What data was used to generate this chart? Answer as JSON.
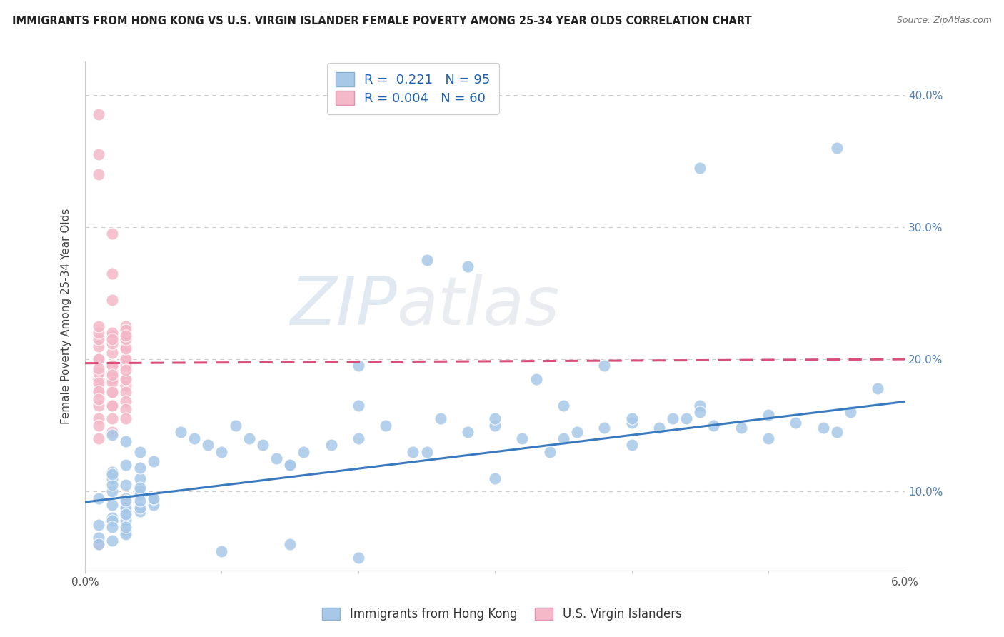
{
  "title": "IMMIGRANTS FROM HONG KONG VS U.S. VIRGIN ISLANDER FEMALE POVERTY AMONG 25-34 YEAR OLDS CORRELATION CHART",
  "source": "Source: ZipAtlas.com",
  "ylabel": "Female Poverty Among 25-34 Year Olds",
  "y_ticks": [
    0.1,
    0.2,
    0.3,
    0.4
  ],
  "y_tick_labels": [
    "10.0%",
    "20.0%",
    "30.0%",
    "40.0%"
  ],
  "x_min": 0.0,
  "x_max": 0.06,
  "y_min": 0.04,
  "y_max": 0.425,
  "blue_R": 0.221,
  "blue_N": 95,
  "pink_R": 0.004,
  "pink_N": 60,
  "blue_color": "#a8c8e8",
  "pink_color": "#f4b8c8",
  "blue_line_color": "#3a7abf",
  "pink_line_color": "#d94f7a",
  "watermark_zip": "ZIP",
  "watermark_atlas": "atlas",
  "legend_label_blue": "Immigrants from Hong Kong",
  "legend_label_pink": "U.S. Virgin Islanders",
  "blue_scatter_x": [
    0.001,
    0.002,
    0.002,
    0.003,
    0.003,
    0.003,
    0.004,
    0.004,
    0.005,
    0.005,
    0.001,
    0.002,
    0.002,
    0.003,
    0.003,
    0.004,
    0.004,
    0.005,
    0.001,
    0.002,
    0.002,
    0.003,
    0.004,
    0.001,
    0.002,
    0.003,
    0.002,
    0.003,
    0.004,
    0.002,
    0.003,
    0.004,
    0.003,
    0.002,
    0.003,
    0.004,
    0.005,
    0.003,
    0.004,
    0.002,
    0.007,
    0.008,
    0.009,
    0.01,
    0.011,
    0.012,
    0.013,
    0.014,
    0.015,
    0.016,
    0.018,
    0.02,
    0.022,
    0.024,
    0.026,
    0.028,
    0.03,
    0.032,
    0.034,
    0.036,
    0.038,
    0.04,
    0.042,
    0.044,
    0.046,
    0.048,
    0.05,
    0.052,
    0.054,
    0.056,
    0.02,
    0.025,
    0.03,
    0.035,
    0.04,
    0.045,
    0.028,
    0.033,
    0.038,
    0.043,
    0.015,
    0.02,
    0.025,
    0.03,
    0.035,
    0.04,
    0.045,
    0.05,
    0.055,
    0.058,
    0.01,
    0.015,
    0.02,
    0.045,
    0.055
  ],
  "blue_scatter_y": [
    0.095,
    0.1,
    0.09,
    0.105,
    0.095,
    0.085,
    0.11,
    0.1,
    0.09,
    0.095,
    0.075,
    0.08,
    0.115,
    0.12,
    0.07,
    0.085,
    0.13,
    0.095,
    0.065,
    0.11,
    0.078,
    0.088,
    0.118,
    0.06,
    0.073,
    0.093,
    0.105,
    0.078,
    0.098,
    0.113,
    0.068,
    0.088,
    0.138,
    0.063,
    0.083,
    0.103,
    0.123,
    0.073,
    0.093,
    0.143,
    0.145,
    0.14,
    0.135,
    0.13,
    0.15,
    0.14,
    0.135,
    0.125,
    0.12,
    0.13,
    0.135,
    0.14,
    0.15,
    0.13,
    0.155,
    0.145,
    0.15,
    0.14,
    0.13,
    0.145,
    0.148,
    0.152,
    0.148,
    0.155,
    0.15,
    0.148,
    0.158,
    0.152,
    0.148,
    0.16,
    0.195,
    0.275,
    0.155,
    0.165,
    0.155,
    0.165,
    0.27,
    0.185,
    0.195,
    0.155,
    0.12,
    0.165,
    0.13,
    0.11,
    0.14,
    0.135,
    0.16,
    0.14,
    0.145,
    0.178,
    0.055,
    0.06,
    0.05,
    0.345,
    0.36
  ],
  "pink_scatter_x": [
    0.001,
    0.001,
    0.001,
    0.001,
    0.001,
    0.001,
    0.001,
    0.001,
    0.001,
    0.001,
    0.002,
    0.002,
    0.002,
    0.002,
    0.002,
    0.002,
    0.002,
    0.002,
    0.002,
    0.002,
    0.003,
    0.003,
    0.003,
    0.003,
    0.003,
    0.003,
    0.003,
    0.003,
    0.003,
    0.003,
    0.001,
    0.001,
    0.001,
    0.001,
    0.002,
    0.002,
    0.002,
    0.002,
    0.003,
    0.003,
    0.001,
    0.001,
    0.002,
    0.002,
    0.003,
    0.003,
    0.001,
    0.002,
    0.003,
    0.001,
    0.001,
    0.002,
    0.002,
    0.003,
    0.001,
    0.002,
    0.003,
    0.001,
    0.002,
    0.003
  ],
  "pink_scatter_y": [
    0.385,
    0.355,
    0.34,
    0.2,
    0.185,
    0.175,
    0.165,
    0.155,
    0.15,
    0.14,
    0.295,
    0.265,
    0.245,
    0.215,
    0.195,
    0.185,
    0.175,
    0.165,
    0.155,
    0.145,
    0.225,
    0.21,
    0.2,
    0.195,
    0.185,
    0.18,
    0.175,
    0.168,
    0.162,
    0.155,
    0.19,
    0.182,
    0.176,
    0.17,
    0.19,
    0.183,
    0.175,
    0.165,
    0.195,
    0.185,
    0.2,
    0.193,
    0.195,
    0.188,
    0.2,
    0.192,
    0.21,
    0.205,
    0.208,
    0.215,
    0.22,
    0.218,
    0.212,
    0.215,
    0.225,
    0.22,
    0.222,
    0.06,
    0.215,
    0.218
  ],
  "blue_trend_x": [
    0.0,
    0.06
  ],
  "blue_trend_y": [
    0.092,
    0.168
  ],
  "pink_trend_x": [
    0.0,
    0.06
  ],
  "pink_trend_y": [
    0.197,
    0.2
  ]
}
